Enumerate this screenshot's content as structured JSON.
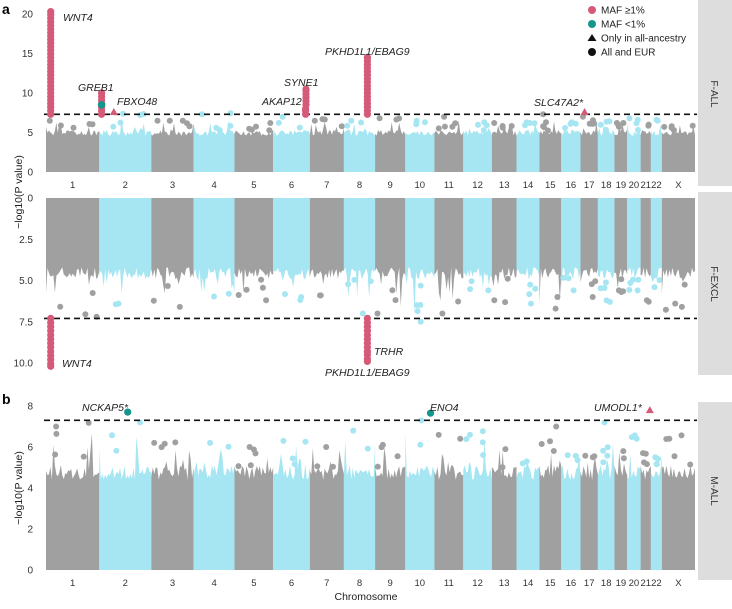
{
  "chart_data": {
    "type": "scatter",
    "subtype": "manhattan",
    "xlabel": "Chromosome",
    "ylabel": "−log10(P value)",
    "colors": {
      "odd_chr": "#a0a0a0",
      "even_chr": "#a6e6f2",
      "maf_common": "#d45a78",
      "maf_rare": "#14968c",
      "threshold": "#111111",
      "strip": "#dddddd"
    },
    "chromosomes": [
      "1",
      "2",
      "3",
      "4",
      "5",
      "6",
      "7",
      "8",
      "9",
      "10",
      "11",
      "12",
      "13",
      "14",
      "15",
      "16",
      "17",
      "18",
      "19",
      "20",
      "21",
      "22",
      "X"
    ],
    "chr_length_mb": [
      249,
      243,
      198,
      191,
      181,
      171,
      159,
      146,
      141,
      136,
      135,
      134,
      115,
      107,
      102,
      90,
      81,
      78,
      59,
      63,
      48,
      51,
      155
    ],
    "legend": [
      {
        "label": "MAF ≥1%",
        "marker": "circle",
        "color": "#d45a78"
      },
      {
        "label": "MAF <1%",
        "marker": "circle",
        "color": "#14968c"
      },
      {
        "label": "Only in all-ancestry",
        "marker": "triangle",
        "color": "#111111"
      },
      {
        "label": "All and EUR",
        "marker": "circle",
        "color": "#111111"
      }
    ],
    "significance_threshold": 7.3,
    "panels": [
      {
        "id": "a-top",
        "letter": "a",
        "strip": "F-ALL",
        "inverted": false,
        "ylim": [
          0,
          21
        ],
        "yticks": [
          "0",
          "5",
          "10",
          "15",
          "20"
        ],
        "ytick_values": [
          0,
          5,
          10,
          15,
          20
        ],
        "background_peak": [
          6.5,
          7.2,
          6.5,
          7.3,
          6.2,
          7.0,
          6.5,
          6.5,
          6.8,
          6.3,
          7.0,
          6.3,
          6.2,
          6.2,
          7.3,
          6.3,
          7.0,
          6.4,
          6.2,
          6.6,
          6.0,
          6.5,
          5.8
        ],
        "background_base": 5.0,
        "hits": [
          {
            "gene": "WNT4",
            "chr": "1",
            "pos_mb": 22,
            "min": 7.3,
            "max": 20.3,
            "maf": "common",
            "shape": "circle"
          },
          {
            "gene": "GREB1",
            "chr": "2",
            "pos_mb": 11,
            "min": 7.3,
            "max": 10.0,
            "maf": "common",
            "shape": "circle",
            "rare_value": 8.5
          },
          {
            "gene": "FBXO48",
            "chr": "2",
            "pos_mb": 68,
            "min": 7.6,
            "max": 7.6,
            "maf": "common",
            "shape": "triangle"
          },
          {
            "gene": "AKAP12",
            "chr": "6",
            "pos_mb": 151,
            "min": 7.3,
            "max": 8.0,
            "maf": "common",
            "shape": "circle"
          },
          {
            "gene": "SYNE1",
            "chr": "6",
            "pos_mb": 153,
            "min": 8.5,
            "max": 10.5,
            "maf": "common",
            "shape": "circle"
          },
          {
            "gene": "PKHD1L1/EBAG9",
            "chr": "8",
            "pos_mb": 110,
            "min": 7.3,
            "max": 14.5,
            "maf": "common",
            "shape": "circle"
          },
          {
            "gene": "SLC47A2*",
            "chr": "17",
            "pos_mb": 19,
            "min": 7.6,
            "max": 7.6,
            "maf": "common",
            "shape": "triangle"
          }
        ]
      },
      {
        "id": "a-bottom",
        "letter": "",
        "strip": "F-EXCL",
        "inverted": true,
        "ylim": [
          0,
          10.5
        ],
        "yticks": [
          "0",
          "2.5",
          "5.0",
          "7.5",
          "10.0"
        ],
        "ytick_values": [
          0,
          2.5,
          5,
          7.5,
          10
        ],
        "background_peak": [
          7.2,
          6.4,
          6.6,
          5.8,
          6.2,
          6.0,
          5.9,
          7.0,
          7.0,
          7.5,
          7.0,
          5.6,
          6.2,
          6.4,
          6.7,
          5.6,
          6.0,
          6.3,
          5.6,
          5.6,
          6.2,
          5.4,
          6.6
        ],
        "background_base": 4.6,
        "hits": [
          {
            "gene": "WNT4",
            "chr": "1",
            "pos_mb": 22,
            "min": 7.3,
            "max": 10.2,
            "maf": "common",
            "shape": "circle"
          },
          {
            "gene": "TRHR",
            "chr": "8",
            "pos_mb": 110,
            "min": 7.3,
            "max": 9.3,
            "maf": "common",
            "shape": "circle"
          },
          {
            "gene": "PKHD1L1/EBAG9",
            "chr": "8",
            "pos_mb": 110,
            "min": 9.5,
            "max": 9.9,
            "maf": "common",
            "shape": "circle"
          }
        ]
      },
      {
        "id": "b",
        "letter": "b",
        "strip": "M-ALL",
        "inverted": false,
        "ylim": [
          0,
          8.2
        ],
        "yticks": [
          "0",
          "2",
          "4",
          "6",
          "8"
        ],
        "ytick_values": [
          0,
          2,
          4,
          6,
          8
        ],
        "background_peak": [
          7.0,
          7.2,
          6.2,
          6.2,
          6.0,
          6.3,
          6.0,
          6.8,
          6.1,
          7.3,
          6.4,
          6.6,
          5.9,
          5.3,
          7.0,
          5.6,
          5.5,
          7.2,
          5.8,
          6.4,
          5.7,
          5.5,
          6.4
        ],
        "background_base": 4.8,
        "hits": [
          {
            "gene": "NCKAP5*",
            "chr": "2",
            "pos_mb": 133,
            "min": 7.7,
            "max": 7.7,
            "maf": "rare",
            "shape": "circle"
          },
          {
            "gene": "ENO4",
            "chr": "10",
            "pos_mb": 118,
            "min": 7.65,
            "max": 7.65,
            "maf": "rare",
            "shape": "circle"
          },
          {
            "gene": "UMODL1*",
            "chr": "21",
            "pos_mb": 43,
            "min": 7.8,
            "max": 7.8,
            "maf": "common",
            "shape": "triangle"
          }
        ]
      }
    ]
  }
}
